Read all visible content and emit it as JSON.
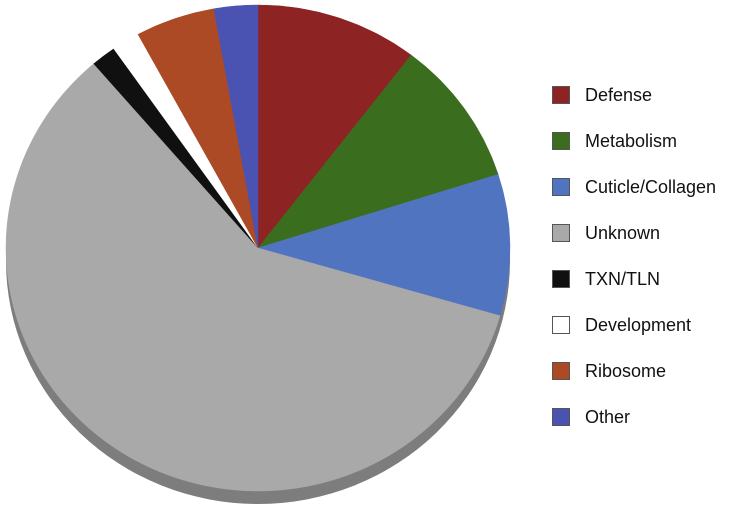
{
  "chart_data": {
    "type": "pie",
    "categories": [
      "Defense",
      "Metabolism",
      "Cuticle/Collagen",
      "Unknown",
      "TXN/TLN",
      "Development",
      "Ribosome",
      "Other"
    ],
    "values": [
      10.4,
      9.7,
      9.4,
      59.2,
      1.6,
      1.8,
      5.1,
      2.8
    ],
    "colors": [
      "#8e2323",
      "#3a6e1e",
      "#5174c0",
      "#a9a9a9",
      "#101010",
      "#ffffff",
      "#ab4a25",
      "#4a52b2"
    ],
    "legend": "right"
  }
}
